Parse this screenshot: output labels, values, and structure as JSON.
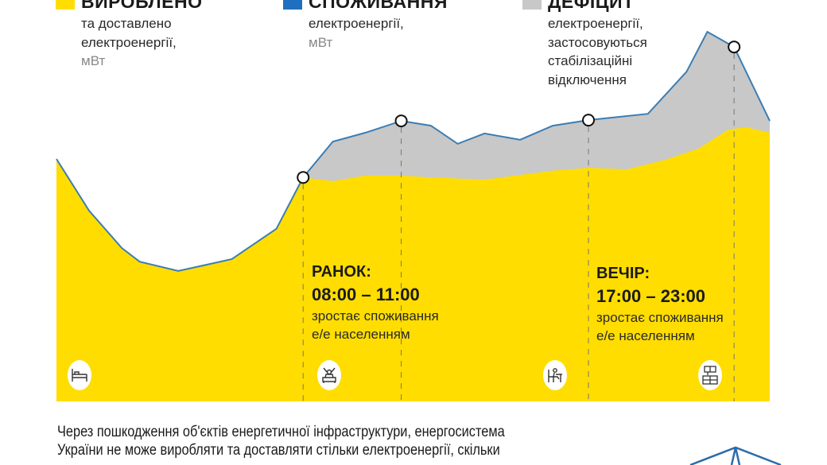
{
  "colors": {
    "produced": "#FFDD00",
    "consumption": "#1F6FC0",
    "consumption_line": "#3B7DB3",
    "deficit": "#C8C8C8"
  },
  "legend": [
    {
      "title": "ВИРОБЛЕНО",
      "lines": [
        "та доставлено",
        "електроенергії,"
      ],
      "unit": "мВт",
      "color": "#FFDD00"
    },
    {
      "title": "СПОЖИВАННЯ",
      "lines": [
        "електроенергії,"
      ],
      "unit": "мВт",
      "color": "#1F6FC0"
    },
    {
      "title": "ДЕФІЦИТ",
      "lines": [
        "електроенергії,",
        "застосовуються",
        "стабілізаційні",
        "відключення"
      ],
      "unit": "",
      "color": "#C8C8C8"
    }
  ],
  "periods": [
    {
      "heading": "РАНОК:",
      "time": "08:00 – 11:00",
      "desc1": "зростає споживання",
      "desc2": "е/е населенням"
    },
    {
      "heading": "ВЕЧІР:",
      "time": "17:00 – 23:00",
      "desc1": "зростає споживання",
      "desc2": "е/е населенням"
    }
  ],
  "icons": [
    "bed-icon",
    "waking-person-icon",
    "person-at-desk-icon",
    "kitchen-icon"
  ],
  "note": [
    "Через пошкодження об'єктів енергетичної інфраструктури, енергосистема",
    "України не може виробляти та доставляти стільки електроенергії, скільки"
  ],
  "chart_data": {
    "type": "area",
    "xlabel": "",
    "ylabel": "",
    "xlim": [
      0,
      24
    ],
    "ylim": [
      0,
      100
    ],
    "grid": false,
    "series": [
      {
        "name": "СПОЖИВАННЯ",
        "x": [
          0,
          1.1,
          2.2,
          2.8,
          4.1,
          5.9,
          7.4,
          8.3,
          9.3,
          10.4,
          11.6,
          12.6,
          13.5,
          14.4,
          15.6,
          16.7,
          17.9,
          19.9,
          21.2,
          21.9,
          22.8,
          24
        ],
        "y": [
          65.6,
          51.6,
          41.5,
          37.8,
          35.3,
          38.5,
          46.7,
          60.6,
          70.3,
          72.7,
          75.9,
          74.6,
          69.7,
          72.5,
          70.8,
          74.6,
          76.1,
          77.8,
          89.2,
          100,
          95.9,
          75.9
        ]
      },
      {
        "name": "ВИРОБЛЕНО",
        "x": [
          0,
          1.1,
          2.2,
          2.8,
          4.1,
          5.9,
          7.4,
          8.3,
          9.3,
          10.4,
          11.6,
          12.6,
          14.4,
          16.7,
          17.9,
          19.2,
          20.5,
          21.6,
          22.6,
          23.2,
          24
        ],
        "y": [
          65.6,
          51.6,
          41.5,
          37.8,
          35.3,
          38.5,
          46.7,
          60.6,
          59.6,
          61.1,
          61.1,
          60.6,
          60.0,
          62.4,
          63.2,
          62.8,
          65.4,
          68.4,
          73.5,
          74.2,
          72.7
        ]
      }
    ],
    "markers": [
      {
        "x": 8.3,
        "y": 60.6,
        "label": "08:00"
      },
      {
        "x": 11.6,
        "y": 75.9,
        "label": "11:00"
      },
      {
        "x": 17.9,
        "y": 76.1,
        "label": "17:00"
      },
      {
        "x": 22.8,
        "y": 95.9,
        "label": "23:00"
      }
    ]
  }
}
